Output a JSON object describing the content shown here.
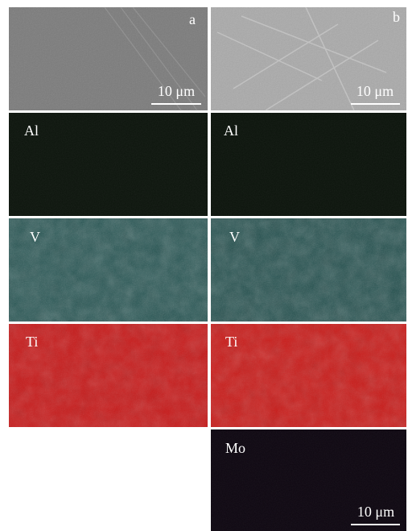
{
  "panels": [
    {
      "label": "a",
      "scale_bar": "10 μm"
    },
    {
      "label": "b",
      "scale_bar": "10 μm"
    },
    {
      "label": "Al"
    },
    {
      "label": "Al"
    },
    {
      "label": "V"
    },
    {
      "label": "V"
    },
    {
      "label": "Ti"
    },
    {
      "label": "Ti"
    },
    {
      "label": "Mo",
      "scale_bar": "10 μm"
    }
  ]
}
